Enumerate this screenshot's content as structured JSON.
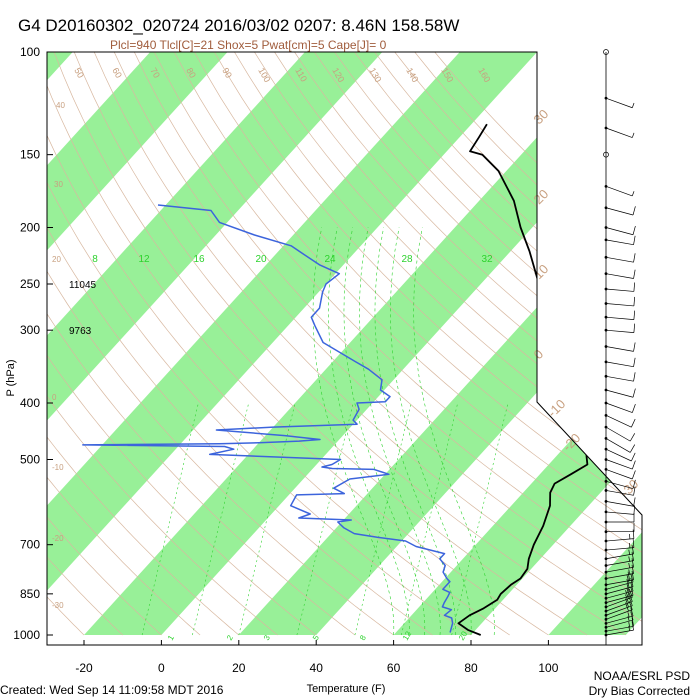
{
  "header": {
    "title": "G4 D20160302_020724 2016/03/02 0207:  8.46N 158.58W",
    "subtitle": "Plcl=940 Tlcl[C]=21 Shox=5 Pwat[cm]=5 Cape[J]= 0"
  },
  "footer": {
    "created": "Created: Wed Sep 14 11:09:58 MDT 2016",
    "org": "NOAA/ESRL PSD",
    "note": "Dry Bias Corrected"
  },
  "chart_data": {
    "type": "line",
    "subtype": "skew-T log-P sounding",
    "xlabel": "Temperature (F)",
    "ylabel": "P (hPa)",
    "xlim": [
      -30,
      120
    ],
    "ylim": [
      1000,
      100
    ],
    "y_scale": "log",
    "x_ticks": [
      -20,
      0,
      20,
      40,
      60,
      80,
      100
    ],
    "x_tick_labels": [
      "-20",
      "0",
      "20",
      "40",
      "60",
      "80",
      "100"
    ],
    "y_ticks": [
      100,
      150,
      200,
      250,
      300,
      400,
      500,
      700,
      850,
      1000
    ],
    "y_tick_labels": [
      "100",
      "150",
      "200",
      "250",
      "300",
      "400",
      "500",
      "700",
      "850",
      "1000"
    ],
    "height_labels": [
      {
        "p": 250,
        "text": "11045"
      },
      {
        "p": 300,
        "text": "9763"
      }
    ],
    "mixing_ratio_labels": [
      "8",
      "12",
      "16",
      "20",
      "24",
      "28",
      "32"
    ],
    "bottom_mixing_labels": [
      "1",
      "2",
      "3",
      "5",
      "8",
      "12",
      "20"
    ],
    "dry_adiabat_labels": [
      "50",
      "60",
      "70",
      "80",
      "90",
      "100",
      "110",
      "120",
      "130",
      "140",
      "150",
      "160"
    ],
    "isotherm_labels": [
      "30",
      "20",
      "10",
      "0",
      "-10",
      "-20",
      "-30",
      "-40"
    ],
    "colors": {
      "temperature": "#000000",
      "dewpoint": "#3c64dc",
      "isotherm_band": "#98f098",
      "adiabat": "#d8b8a0",
      "label_brown": "#c8a080",
      "mixing_ratio": "#2dd22d"
    },
    "series": [
      {
        "name": "Temperature",
        "points": [
          [
            82.5,
            1000
          ],
          [
            78,
            980
          ],
          [
            74,
            955
          ],
          [
            75,
            925
          ],
          [
            77,
            900
          ],
          [
            78.5,
            870
          ],
          [
            78,
            850
          ],
          [
            78.5,
            820
          ],
          [
            79.5,
            800
          ],
          [
            79,
            770
          ],
          [
            77,
            740
          ],
          [
            75,
            700
          ],
          [
            73,
            650
          ],
          [
            70,
            600
          ],
          [
            67,
            570
          ],
          [
            66,
            550
          ],
          [
            68,
            530
          ],
          [
            70,
            510
          ],
          [
            68,
            495
          ],
          [
            66,
            480
          ],
          [
            62,
            460
          ],
          [
            59,
            440
          ],
          [
            55,
            420
          ],
          [
            51,
            400
          ],
          [
            47,
            380
          ],
          [
            43,
            365
          ],
          [
            38,
            340
          ],
          [
            31,
            310
          ],
          [
            23,
            280
          ],
          [
            15,
            250
          ],
          [
            5,
            220
          ],
          [
            -3,
            200
          ],
          [
            -11,
            180
          ],
          [
            -22,
            160
          ],
          [
            -30,
            150
          ],
          [
            -34,
            148
          ],
          [
            -35,
            140
          ],
          [
            -36,
            133
          ]
        ]
      },
      {
        "name": "Dewpoint",
        "points": [
          [
            74,
            990
          ],
          [
            72.5,
            955
          ],
          [
            71,
            935
          ],
          [
            68.5,
            925
          ],
          [
            69,
            905
          ],
          [
            66,
            895
          ],
          [
            65.5,
            880
          ],
          [
            65,
            860
          ],
          [
            64.5,
            845
          ],
          [
            62,
            835
          ],
          [
            62,
            810
          ],
          [
            60.5,
            800
          ],
          [
            58,
            780
          ],
          [
            57,
            760
          ],
          [
            54,
            740
          ],
          [
            54,
            725
          ],
          [
            45,
            705
          ],
          [
            41,
            690
          ],
          [
            33,
            680
          ],
          [
            26,
            670
          ],
          [
            22,
            655
          ],
          [
            19,
            640
          ],
          [
            22,
            635
          ],
          [
            8,
            630
          ],
          [
            10,
            620
          ],
          [
            3,
            600
          ],
          [
            2,
            575
          ],
          [
            14,
            572
          ],
          [
            10,
            560
          ],
          [
            12,
            540
          ],
          [
            21,
            530
          ],
          [
            16,
            520
          ],
          [
            5,
            518
          ],
          [
            2,
            515
          ],
          [
            4,
            510
          ],
          [
            5,
            500
          ],
          [
            -30,
            490
          ],
          [
            -25,
            480
          ],
          [
            -28,
            475
          ],
          [
            -65,
            472
          ],
          [
            -30,
            470
          ],
          [
            -20,
            468
          ],
          [
            -10,
            465
          ],
          [
            -5,
            462
          ],
          [
            -15,
            455
          ],
          [
            -34,
            445
          ],
          [
            -20,
            440
          ],
          [
            1,
            435
          ],
          [
            -1,
            428
          ],
          [
            -2,
            410
          ],
          [
            -4,
            400
          ],
          [
            3,
            398
          ],
          [
            3,
            390
          ],
          [
            -1,
            380
          ],
          [
            -3,
            365
          ],
          [
            -9,
            350
          ],
          [
            -14,
            340
          ],
          [
            -27,
            315
          ],
          [
            -33,
            295
          ],
          [
            -36,
            285
          ],
          [
            -36,
            275
          ],
          [
            -39,
            258
          ],
          [
            -40,
            250
          ],
          [
            -39,
            240
          ],
          [
            -46,
            232
          ],
          [
            -53,
            222
          ],
          [
            -58,
            215
          ],
          [
            -70,
            206
          ],
          [
            -82,
            196
          ],
          [
            -87,
            187
          ],
          [
            -102,
            183
          ]
        ]
      }
    ],
    "wind_barbs": [
      {
        "p": 1000,
        "dir": 80,
        "kt": 15
      },
      {
        "p": 985,
        "dir": 80,
        "kt": 15
      },
      {
        "p": 970,
        "dir": 75,
        "kt": 15
      },
      {
        "p": 955,
        "dir": 75,
        "kt": 15
      },
      {
        "p": 940,
        "dir": 70,
        "kt": 20
      },
      {
        "p": 925,
        "dir": 70,
        "kt": 20
      },
      {
        "p": 910,
        "dir": 70,
        "kt": 20
      },
      {
        "p": 895,
        "dir": 70,
        "kt": 20
      },
      {
        "p": 880,
        "dir": 75,
        "kt": 20
      },
      {
        "p": 865,
        "dir": 75,
        "kt": 20
      },
      {
        "p": 850,
        "dir": 75,
        "kt": 20
      },
      {
        "p": 835,
        "dir": 75,
        "kt": 20
      },
      {
        "p": 820,
        "dir": 80,
        "kt": 20
      },
      {
        "p": 800,
        "dir": 80,
        "kt": 15
      },
      {
        "p": 780,
        "dir": 80,
        "kt": 15
      },
      {
        "p": 760,
        "dir": 80,
        "kt": 15
      },
      {
        "p": 740,
        "dir": 80,
        "kt": 15
      },
      {
        "p": 715,
        "dir": 85,
        "kt": 15
      },
      {
        "p": 690,
        "dir": 85,
        "kt": 15
      },
      {
        "p": 665,
        "dir": 90,
        "kt": 10
      },
      {
        "p": 640,
        "dir": 90,
        "kt": 10
      },
      {
        "p": 615,
        "dir": 95,
        "kt": 10
      },
      {
        "p": 590,
        "dir": 100,
        "kt": 10
      },
      {
        "p": 565,
        "dir": 100,
        "kt": 10
      },
      {
        "p": 545,
        "dir": 105,
        "kt": 10
      },
      {
        "p": 520,
        "dir": 110,
        "kt": 10
      },
      {
        "p": 500,
        "dir": 110,
        "kt": 10
      },
      {
        "p": 480,
        "dir": 115,
        "kt": 10
      },
      {
        "p": 460,
        "dir": 120,
        "kt": 10
      },
      {
        "p": 440,
        "dir": 120,
        "kt": 10
      },
      {
        "p": 420,
        "dir": 115,
        "kt": 10
      },
      {
        "p": 400,
        "dir": 110,
        "kt": 10
      },
      {
        "p": 380,
        "dir": 105,
        "kt": 10
      },
      {
        "p": 360,
        "dir": 100,
        "kt": 10
      },
      {
        "p": 340,
        "dir": 100,
        "kt": 10
      },
      {
        "p": 320,
        "dir": 100,
        "kt": 10
      },
      {
        "p": 300,
        "dir": 95,
        "kt": 10
      },
      {
        "p": 285,
        "dir": 95,
        "kt": 10
      },
      {
        "p": 270,
        "dir": 95,
        "kt": 10
      },
      {
        "p": 255,
        "dir": 95,
        "kt": 10
      },
      {
        "p": 240,
        "dir": 100,
        "kt": 10
      },
      {
        "p": 225,
        "dir": 100,
        "kt": 10
      },
      {
        "p": 210,
        "dir": 100,
        "kt": 10
      },
      {
        "p": 200,
        "dir": 105,
        "kt": 10
      },
      {
        "p": 185,
        "dir": 105,
        "kt": 10
      },
      {
        "p": 170,
        "dir": 110,
        "kt": 5
      },
      {
        "p": 150,
        "dir": 0,
        "kt": 0
      },
      {
        "p": 135,
        "dir": 110,
        "kt": 5
      },
      {
        "p": 120,
        "dir": 110,
        "kt": 5
      },
      {
        "p": 100,
        "dir": 0,
        "kt": 0
      }
    ]
  }
}
